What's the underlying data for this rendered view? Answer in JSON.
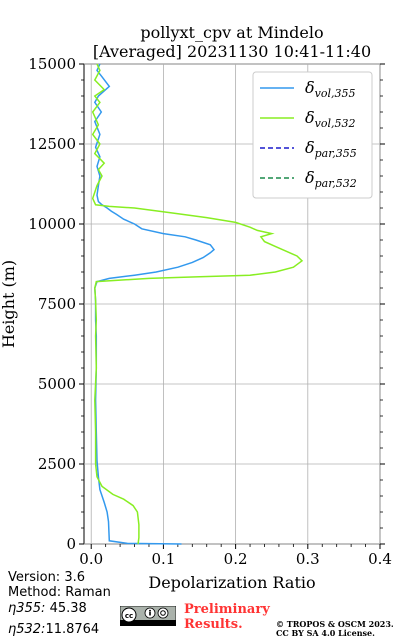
{
  "chart_data": {
    "type": "line",
    "title": "pollyxt_cpv at Mindelo",
    "subtitle": "[Averaged] 20231130 10:41-11:40",
    "xlabel": "Depolarization Ratio",
    "ylabel": "Height (m)",
    "xlim": [
      -0.01,
      0.4
    ],
    "ylim": [
      0,
      15000
    ],
    "xticks": [
      "0.0",
      "0.1",
      "0.2",
      "0.3",
      "0.4"
    ],
    "yticks": [
      "0",
      "2500",
      "5000",
      "7500",
      "10000",
      "12500",
      "15000"
    ],
    "grid": true,
    "legend_position": "top-right",
    "series": [
      {
        "name": "vol,355",
        "label_symbol": "δ",
        "color": "#3399ee",
        "style": "solid",
        "points": [
          [
            0.125,
            0
          ],
          [
            0.05,
            20
          ],
          [
            0.025,
            100
          ],
          [
            0.024,
            700
          ],
          [
            0.022,
            1000
          ],
          [
            0.018,
            1300
          ],
          [
            0.012,
            1700
          ],
          [
            0.01,
            2100
          ],
          [
            0.008,
            2600
          ],
          [
            0.007,
            3500
          ],
          [
            0.006,
            4500
          ],
          [
            0.007,
            5500
          ],
          [
            0.007,
            6500
          ],
          [
            0.006,
            7000
          ],
          [
            0.006,
            7600
          ],
          [
            0.005,
            8000
          ],
          [
            0.008,
            8200
          ],
          [
            0.025,
            8300
          ],
          [
            0.06,
            8400
          ],
          [
            0.09,
            8500
          ],
          [
            0.12,
            8650
          ],
          [
            0.14,
            8800
          ],
          [
            0.155,
            8950
          ],
          [
            0.165,
            9100
          ],
          [
            0.17,
            9200
          ],
          [
            0.165,
            9350
          ],
          [
            0.145,
            9500
          ],
          [
            0.13,
            9600
          ],
          [
            0.1,
            9700
          ],
          [
            0.07,
            9850
          ],
          [
            0.06,
            10000
          ],
          [
            0.045,
            10150
          ],
          [
            0.035,
            10300
          ],
          [
            0.028,
            10400
          ],
          [
            0.022,
            10500
          ],
          [
            0.015,
            10600
          ],
          [
            0.01,
            10700
          ],
          [
            0.008,
            10900
          ],
          [
            0.01,
            11200
          ],
          [
            0.012,
            11500
          ],
          [
            0.008,
            11800
          ],
          [
            0.012,
            12100
          ],
          [
            0.006,
            12400
          ],
          [
            0.012,
            12800
          ],
          [
            0.005,
            13200
          ],
          [
            0.014,
            13500
          ],
          [
            0.005,
            13800
          ],
          [
            0.01,
            14000
          ],
          [
            0.025,
            14300
          ],
          [
            0.015,
            14600
          ],
          [
            0.008,
            14800
          ],
          [
            0.012,
            15000
          ]
        ]
      },
      {
        "name": "vol,532",
        "label_symbol": "δ",
        "color": "#88ee22",
        "style": "solid",
        "points": [
          [
            0.065,
            0
          ],
          [
            0.066,
            200
          ],
          [
            0.066,
            600
          ],
          [
            0.064,
            1000
          ],
          [
            0.058,
            1200
          ],
          [
            0.045,
            1400
          ],
          [
            0.03,
            1550
          ],
          [
            0.015,
            1800
          ],
          [
            0.008,
            2100
          ],
          [
            0.006,
            2500
          ],
          [
            0.006,
            3500
          ],
          [
            0.005,
            4500
          ],
          [
            0.007,
            5500
          ],
          [
            0.006,
            6500
          ],
          [
            0.007,
            7000
          ],
          [
            0.006,
            7600
          ],
          [
            0.005,
            8000
          ],
          [
            0.007,
            8200
          ],
          [
            0.08,
            8300
          ],
          [
            0.15,
            8350
          ],
          [
            0.22,
            8400
          ],
          [
            0.255,
            8500
          ],
          [
            0.28,
            8650
          ],
          [
            0.292,
            8850
          ],
          [
            0.285,
            9000
          ],
          [
            0.27,
            9150
          ],
          [
            0.255,
            9300
          ],
          [
            0.24,
            9450
          ],
          [
            0.235,
            9600
          ],
          [
            0.25,
            9700
          ],
          [
            0.23,
            9800
          ],
          [
            0.22,
            9900
          ],
          [
            0.2,
            10050
          ],
          [
            0.16,
            10200
          ],
          [
            0.11,
            10350
          ],
          [
            0.06,
            10500
          ],
          [
            0.025,
            10550
          ],
          [
            0.006,
            10600
          ],
          [
            0.002,
            10800
          ],
          [
            0.008,
            11200
          ],
          [
            0.015,
            11500
          ],
          [
            0.01,
            11700
          ],
          [
            0.018,
            11900
          ],
          [
            0.005,
            12200
          ],
          [
            0.012,
            12500
          ],
          [
            0.002,
            12800
          ],
          [
            0.01,
            13100
          ],
          [
            0.002,
            13500
          ],
          [
            0.012,
            13800
          ],
          [
            0.005,
            14000
          ],
          [
            0.018,
            14200
          ],
          [
            0.005,
            14500
          ],
          [
            0.012,
            14800
          ],
          [
            0.008,
            15000
          ]
        ]
      },
      {
        "name": "par,355",
        "label_symbol": "δ",
        "color": "#1a1acc",
        "style": "dashed",
        "points": []
      },
      {
        "name": "par,532",
        "label_symbol": "δ",
        "color": "#1a8a4a",
        "style": "dashed",
        "points": []
      }
    ]
  },
  "meta": {
    "version": "Version: 3.6",
    "method": "Method: Raman",
    "eta355_label": "η355:",
    "eta355_value": "45.38",
    "eta532_label": "η532:",
    "eta532_value": "11.8764"
  },
  "badges": {
    "preliminary_line1": "Preliminary",
    "preliminary_line2": "Results.",
    "copyright_line1": "© TROPOS & OSCM 2023.",
    "copyright_line2": "CC BY SA 4.0 License."
  }
}
